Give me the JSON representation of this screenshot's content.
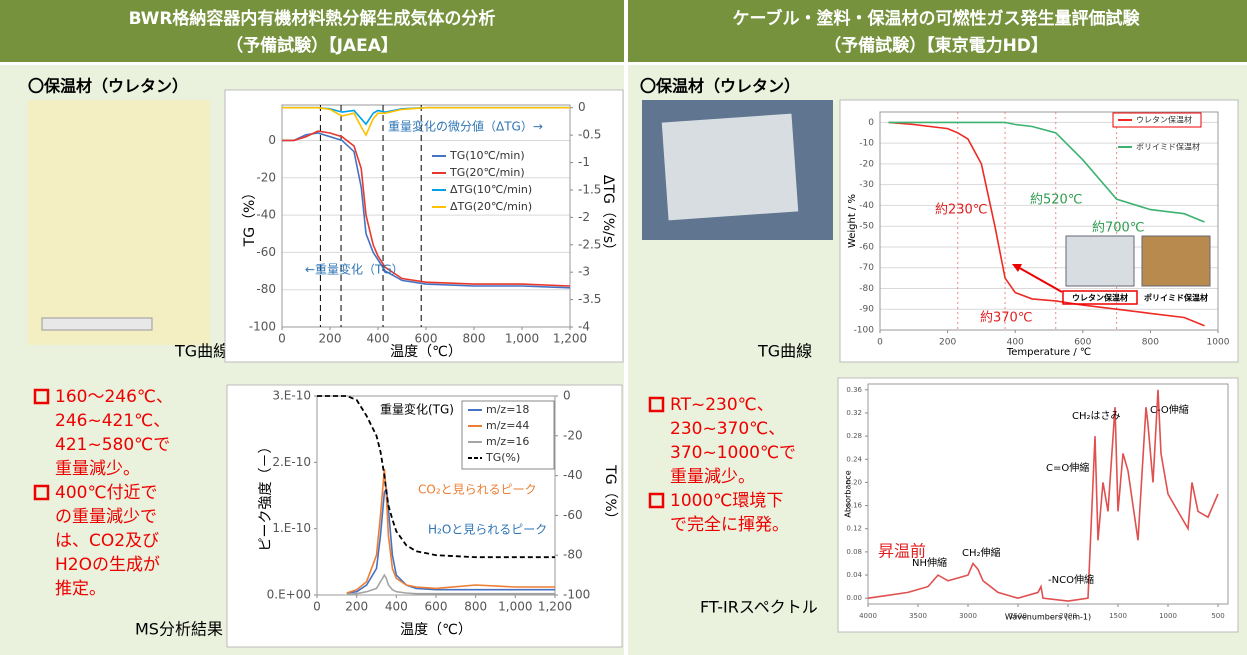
{
  "header": {
    "left": [
      "BWR格納容器内有機材料熱分解生成気体の分析",
      "（予備試験）【JAEA】"
    ],
    "right": [
      "ケーブル・塗料・保温材の可燃性ガス発生量評価試験",
      "（予備試験）【東京電力HD】"
    ]
  },
  "left": {
    "material": "〇保温材（ウレタン）",
    "tg_caption": "TG曲線",
    "ms_caption": "MS分析結果",
    "bullets": [
      [
        "160～246℃、",
        "246~421℃、",
        "421~580℃で",
        "重量減少。"
      ],
      [
        "400℃付近で",
        "の重量減少で",
        "は、CO2及び",
        "H2Oの生成が",
        "推定。"
      ]
    ]
  },
  "right": {
    "material": "〇保温材（ウレタン）",
    "tg_caption": "TG曲線",
    "ftir_caption": "FT-IRスペクトル",
    "bullets": [
      [
        "RT~230℃、",
        "230~370℃、",
        "370~1000℃で",
        "重量減少。"
      ],
      [
        "1000℃環境下",
        "で完全に揮発。"
      ]
    ]
  },
  "chart_data": [
    {
      "type": "line",
      "xlabel": "温度（℃）",
      "ylabel": "TG（%）",
      "y2label": "ΔTG（%/s）",
      "grid": true,
      "xlim": [
        0,
        1200
      ],
      "xticks": [
        0,
        200,
        400,
        600,
        800,
        {
          "value": 1000,
          "label": "1,000"
        },
        {
          "value": 1200,
          "label": "1,200"
        }
      ],
      "ylim": [
        -100,
        19
      ],
      "yticks": [
        0,
        -20,
        -40,
        -60,
        -80,
        -100
      ],
      "y2lim": [
        -4,
        0.05
      ],
      "y2ticks": [
        0,
        -0.5,
        -1,
        -1.5,
        -2,
        -2.5,
        -3,
        -3.5,
        -4
      ],
      "vlines": [
        160,
        246,
        421,
        580
      ],
      "annotations": [
        "重量変化の微分値（ΔTG）→",
        "←重量変化（TG）"
      ],
      "x": [
        0,
        50,
        100,
        150,
        200,
        250,
        300,
        330,
        350,
        380,
        400,
        430,
        500,
        600,
        800,
        1000,
        1200
      ],
      "series": [
        {
          "name": "TG(10℃/min)",
          "color": "#4472c4",
          "values": [
            0,
            0,
            3,
            4,
            2,
            0,
            -6,
            -25,
            -50,
            -60,
            -64,
            -70,
            -75,
            -77,
            -78,
            -78,
            -79
          ]
        },
        {
          "name": "TG(20℃/min)",
          "color": "#e8382c",
          "values": [
            0,
            0,
            2,
            5,
            4,
            2,
            -3,
            -15,
            -40,
            -56,
            -62,
            -68,
            -74,
            -76,
            -77,
            -77,
            -78
          ]
        },
        {
          "name": "ΔTG(10℃/min)",
          "color": "#00a0e9",
          "axis": "y2",
          "values": [
            0,
            0,
            0,
            0,
            -0.02,
            -0.08,
            -0.05,
            -0.2,
            -0.3,
            -0.1,
            -0.05,
            -0.08,
            -0.02,
            0,
            0,
            0,
            0
          ]
        },
        {
          "name": "ΔTG(20℃/min)",
          "color": "#ffc000",
          "axis": "y2",
          "values": [
            0,
            0,
            0,
            0,
            -0.03,
            -0.15,
            -0.1,
            -0.35,
            -0.5,
            -0.2,
            -0.1,
            -0.1,
            -0.03,
            0,
            0,
            0,
            0
          ]
        }
      ]
    },
    {
      "type": "line",
      "xlabel": "温度（℃）",
      "ylabel": "ピーク強度（－）",
      "y2label": "TG（%）",
      "grid": false,
      "xlim": [
        0,
        1200
      ],
      "xticks": [
        0,
        200,
        400,
        600,
        800,
        {
          "value": 1000,
          "label": "1,000"
        },
        {
          "value": 1200,
          "label": "1,200"
        }
      ],
      "ylim": [
        0,
        3e-10
      ],
      "yticks": [
        {
          "value": 0,
          "label": "0.E+00"
        },
        {
          "value": 1e-10,
          "label": "1.E-10"
        },
        {
          "value": 2e-10,
          "label": "2.E-10"
        },
        {
          "value": 3e-10,
          "label": "3.E-10"
        }
      ],
      "y2lim": [
        -100,
        0
      ],
      "y2ticks": [
        0,
        -20,
        -40,
        -60,
        -80,
        -100
      ],
      "annotations": [
        "重量変化(TG)",
        "CO₂と見られるピーク",
        "H₂Oと見られるピーク"
      ],
      "x": [
        0,
        100,
        150,
        200,
        250,
        300,
        320,
        340,
        350,
        360,
        380,
        400,
        450,
        500,
        600,
        800,
        1000,
        1200
      ],
      "series": [
        {
          "name": "m/z=18",
          "color": "#4472c4",
          "values": [
            null,
            null,
            3e-12,
            5e-12,
            1.5e-11,
            4e-11,
            9e-11,
            1.55e-10,
            1.6e-10,
            1.3e-10,
            6e-11,
            3e-11,
            1.5e-11,
            1e-11,
            8e-12,
            8e-12,
            8e-12,
            8e-12
          ]
        },
        {
          "name": "m/z=44",
          "color": "#ed7d31",
          "values": [
            null,
            null,
            3e-12,
            8e-12,
            2e-11,
            6e-11,
            1.2e-10,
            1.9e-10,
            1.5e-10,
            9e-11,
            4e-11,
            2.5e-11,
            1.5e-11,
            1.2e-11,
            1e-11,
            1.5e-11,
            1.2e-11,
            1.2e-11
          ]
        },
        {
          "name": "m/z=16",
          "color": "#a5a5a5",
          "values": [
            null,
            null,
            1e-12,
            2e-12,
            5e-12,
            1e-11,
            2e-11,
            3e-11,
            2.5e-11,
            1.5e-11,
            8e-12,
            5e-12,
            3e-12,
            2e-12,
            2e-12,
            2e-12,
            2e-12,
            2e-12
          ]
        },
        {
          "name": "TG(%)",
          "color": "#000000",
          "axis": "y2",
          "style": "dashed",
          "values": [
            0,
            0,
            0,
            -2,
            -10,
            -20,
            -28,
            -40,
            -48,
            -55,
            -62,
            -68,
            -75,
            -78,
            -80,
            -81,
            -81,
            -81
          ]
        }
      ]
    },
    {
      "type": "line",
      "xlabel": "Temperature / ℃",
      "ylabel": "Weight / %",
      "grid": true,
      "xlim": [
        0,
        1000
      ],
      "xticks": [
        0,
        200,
        400,
        600,
        800,
        1000
      ],
      "ylim": [
        -100,
        5
      ],
      "yticks": [
        0,
        -10,
        -20,
        -30,
        -40,
        -50,
        -60,
        -70,
        -80,
        -90,
        -100
      ],
      "vlines": [
        230,
        370,
        520,
        700
      ],
      "annotations": [
        "約230℃",
        "約370℃",
        "約520℃",
        "約700℃"
      ],
      "inset_labels": [
        "ウレタン保温材",
        "ポリイミド保温材"
      ],
      "x": [
        25,
        100,
        200,
        230,
        260,
        300,
        340,
        370,
        400,
        450,
        520,
        600,
        700,
        800,
        900,
        960
      ],
      "series": [
        {
          "name": "ウレタン保温材",
          "color": "#ee2a24",
          "values": [
            0,
            -1,
            -3,
            -5,
            -8,
            -20,
            -50,
            -75,
            -82,
            -85,
            -86,
            -88,
            -90,
            -92,
            -94,
            -98
          ]
        },
        {
          "name": "ポリイミド保温材",
          "color": "#3cb371",
          "values": [
            0,
            0,
            0,
            0,
            0,
            0,
            0,
            0,
            -1,
            -2,
            -5,
            -18,
            -37,
            -42,
            -44,
            -48
          ]
        }
      ]
    },
    {
      "type": "line",
      "xlabel": "Wavenumbers (cm-1)",
      "ylabel": "Absorbance",
      "grid": false,
      "xlim": [
        4000,
        400
      ],
      "xticks": [
        4000,
        3500,
        3000,
        2500,
        2000,
        1500,
        1000,
        500
      ],
      "ylim": [
        -0.01,
        0.37
      ],
      "yticks": [
        {
          "value": 0,
          "label": "0.00"
        },
        {
          "value": 0.04,
          "label": "0.04"
        },
        {
          "value": 0.08,
          "label": "0.08"
        },
        {
          "value": 0.12,
          "label": "0.12"
        },
        {
          "value": 0.16,
          "label": "0.16"
        },
        {
          "value": 0.2,
          "label": "0.20"
        },
        {
          "value": 0.24,
          "label": "0.24"
        },
        {
          "value": 0.28,
          "label": "0.28"
        },
        {
          "value": 0.32,
          "label": "0.32"
        },
        {
          "value": 0.36,
          "label": "0.36"
        }
      ],
      "annotations": [
        "CH₂はさみ",
        "C-O伸縮",
        "C=O伸縮",
        "昇温前",
        "NH伸縮",
        "CH₂伸縮",
        "-NCO伸縮"
      ],
      "x": [
        4000,
        3800,
        3600,
        3400,
        3300,
        3200,
        3000,
        2950,
        2900,
        2850,
        2700,
        2500,
        2300,
        2270,
        2250,
        2000,
        1800,
        1730,
        1700,
        1650,
        1600,
        1530,
        1500,
        1450,
        1400,
        1300,
        1220,
        1200,
        1150,
        1100,
        1070,
        1000,
        900,
        800,
        760,
        700,
        600,
        500
      ],
      "series": [
        {
          "color": "#e05050",
          "values": [
            0.0,
            0.005,
            0.01,
            0.02,
            0.04,
            0.03,
            0.04,
            0.06,
            0.05,
            0.03,
            0.01,
            0.0,
            0.01,
            0.02,
            0.0,
            -0.005,
            0.0,
            0.28,
            0.1,
            0.2,
            0.15,
            0.33,
            0.15,
            0.25,
            0.22,
            0.1,
            0.33,
            0.3,
            0.2,
            0.36,
            0.25,
            0.18,
            0.15,
            0.12,
            0.2,
            0.15,
            0.14,
            0.18
          ]
        }
      ]
    }
  ]
}
